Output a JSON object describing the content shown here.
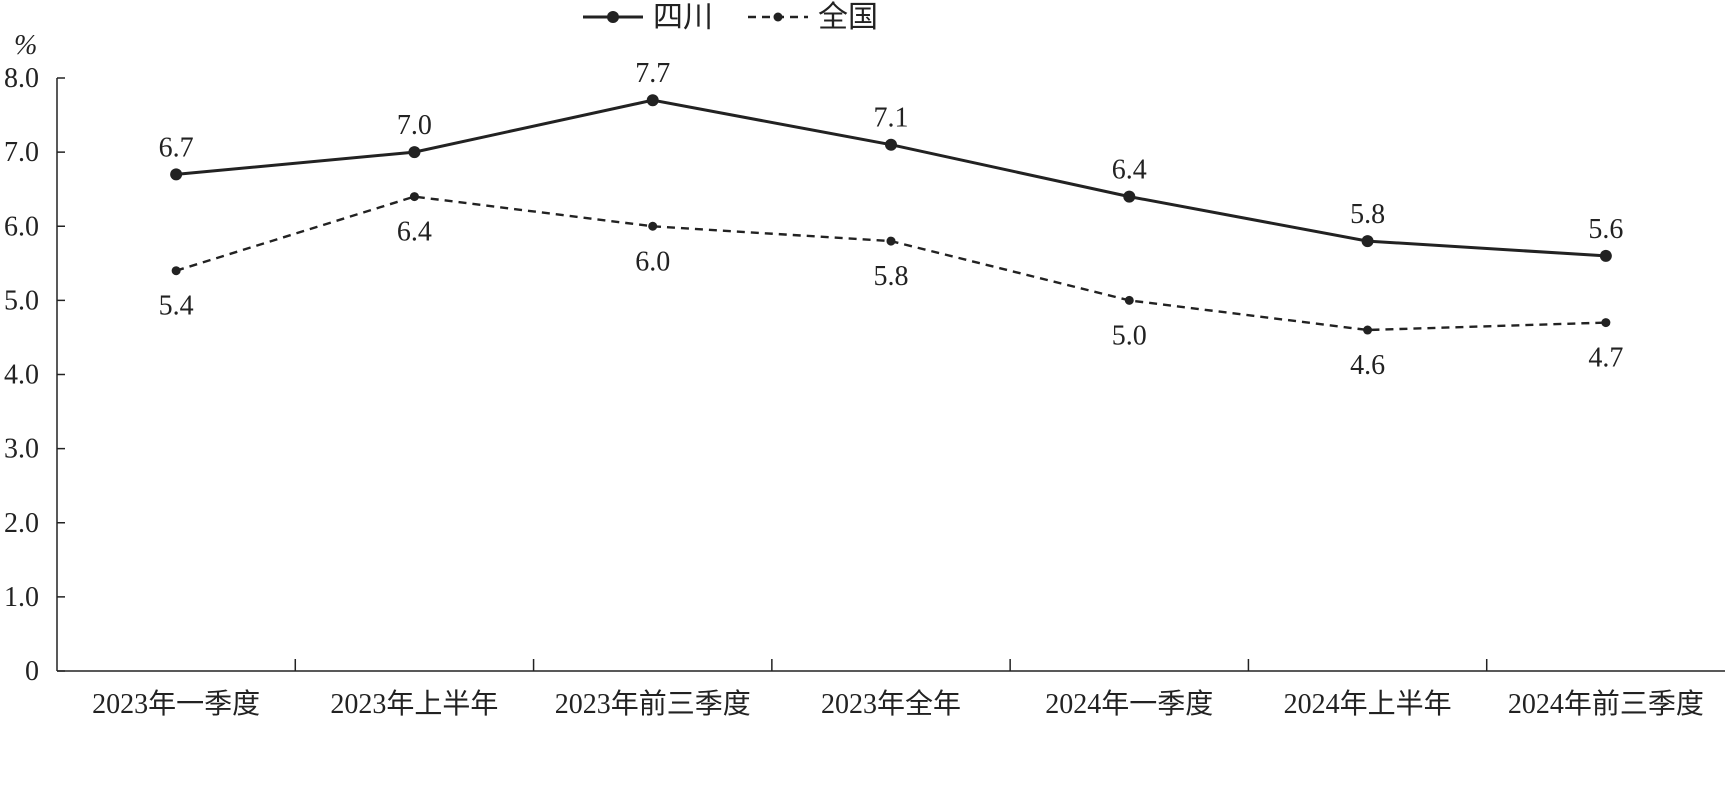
{
  "chart_data": {
    "type": "line",
    "unit": "%",
    "categories": [
      "2023年一季度",
      "2023年上半年",
      "2023年前三季度",
      "2023年全年",
      "2024年一季度",
      "2024年上半年",
      "2024年前三季度"
    ],
    "series": [
      {
        "name": "四川",
        "style": "solid",
        "marker": "large-dot",
        "color": "#222222",
        "values": [
          6.7,
          7.0,
          7.7,
          7.1,
          6.4,
          5.8,
          5.6
        ]
      },
      {
        "name": "全国",
        "style": "dashed",
        "marker": "small-dot",
        "color": "#222222",
        "values": [
          5.4,
          6.4,
          6.0,
          5.8,
          5.0,
          4.6,
          4.7
        ]
      }
    ],
    "data_labels": [
      [
        "6.7",
        "7.0",
        "7.7",
        "7.1",
        "6.4",
        "5.8",
        "5.6"
      ],
      [
        "5.4",
        "6.4",
        "6.0",
        "5.8",
        "5.0",
        "4.6",
        "4.7"
      ]
    ],
    "y_ticks": [
      "0",
      "1.0",
      "2.0",
      "3.0",
      "4.0",
      "5.0",
      "6.0",
      "7.0",
      "8.0"
    ],
    "ylim": [
      0,
      8
    ],
    "grid": false,
    "legend_position": "top-center"
  }
}
